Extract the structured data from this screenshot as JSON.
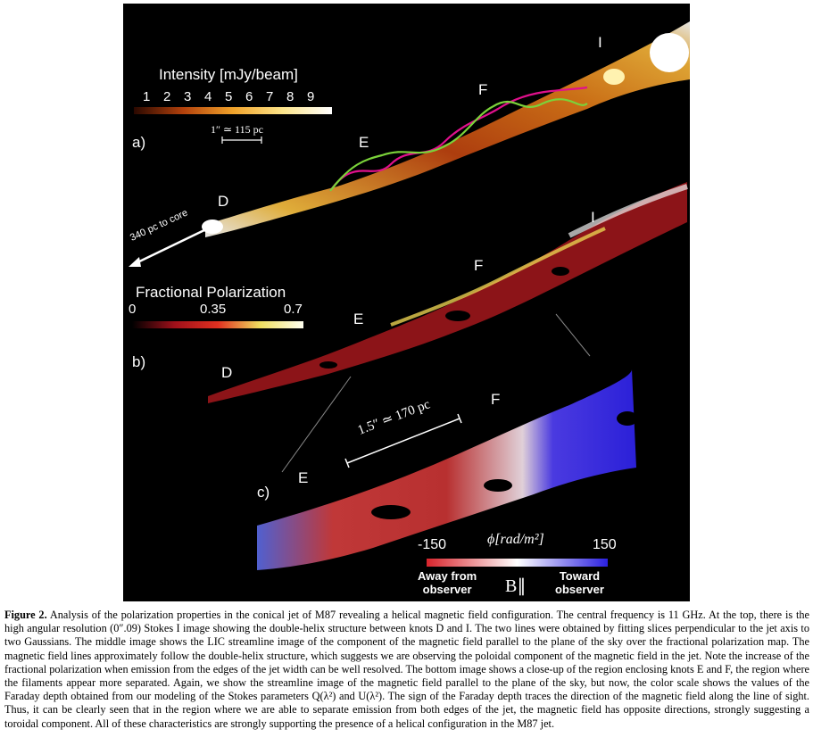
{
  "figure": {
    "panel_a": {
      "label": "a)",
      "colorbar_title": "Intensity [mJy/beam]",
      "colorbar_ticks": [
        "1",
        "2",
        "3",
        "4",
        "5",
        "6",
        "7",
        "8",
        "9"
      ],
      "scale_label": "1″ ≃ 115 pc",
      "knots": [
        "D",
        "E",
        "F",
        "I"
      ],
      "core_label": "340 pc to core"
    },
    "panel_b": {
      "label": "b)",
      "colorbar_title": "Fractional Polarization",
      "colorbar_ticks": [
        "0",
        "0.35",
        "0.7"
      ],
      "knots": [
        "D",
        "E",
        "F",
        "I"
      ]
    },
    "panel_c": {
      "label": "c)",
      "scale_label": "1.5″ ≃ 170 pc",
      "knots": [
        "E",
        "F"
      ],
      "colorbar_min": "-150",
      "colorbar_unit": "ϕ[rad/m²]",
      "colorbar_max": "150",
      "away_label_1": "Away from",
      "away_label_2": "observer",
      "toward_label_1": "Toward",
      "toward_label_2": "observer",
      "b_parallel": "B∥"
    },
    "colors": {
      "intensity_low": "#b3410c",
      "intensity_high": "#ffffff",
      "away": "#d8242c",
      "toward": "#2b20e0",
      "helix_magenta": "#e0108c",
      "helix_green": "#7bd23a"
    }
  },
  "caption": {
    "heading": "Figure 2.",
    "text": "Analysis of the polarization properties in the conical jet of M87 revealing a helical magnetic field configuration. The central frequency is 11 GHz. At the top, there is the high angular resolution (0″.09) Stokes I image showing the double-helix structure between knots D and I. The two lines were obtained by fitting slices perpendicular to the jet axis to two Gaussians. The middle image shows the LIC streamline image of the component of the magnetic field parallel to the plane of the sky over the fractional polarization map. The magnetic field lines approximately follow the double-helix structure, which suggests we are observing the poloidal component of the magnetic field in the jet. Note the increase of the fractional polarization when emission from the edges of the jet width can be well resolved. The bottom image shows a close-up of the region enclosing knots E and F, the region where the filaments appear more separated. Again, we show the streamline image of the magnetic field parallel to the plane of the sky, but now, the color scale shows the values of the Faraday depth obtained from our modeling of the Stokes parameters Q(λ²) and U(λ²). The sign of the Faraday depth traces the direction of the magnetic field along the line of sight. Thus, it can be clearly seen that in the region where we are able to separate emission from both edges of the jet, the magnetic field has opposite directions, strongly suggesting a toroidal component. All of these characteristics are strongly supporting the presence of a helical configuration in the M87 jet."
  }
}
